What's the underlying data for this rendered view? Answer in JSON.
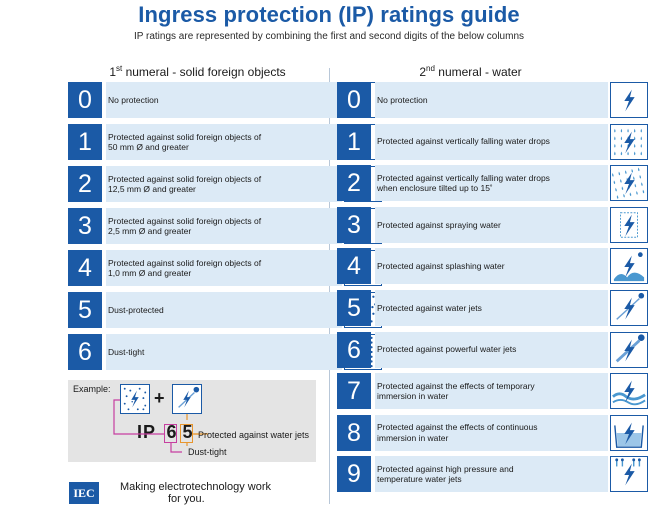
{
  "title": "Ingress protection (IP) ratings guide",
  "subtitle": "IP ratings are represented by combining the first and second digits of the below columns",
  "left_column": {
    "heading_prefix": "1",
    "heading_sup": "st",
    "heading_text": " numeral - solid foreign objects",
    "rows": [
      {
        "num": "0",
        "line1": "No protection",
        "line2": "",
        "icon": "lightning-icon"
      },
      {
        "num": "1",
        "line1": "Protected against solid foreign objects of",
        "line2": "50 mm Ø and greater",
        "icon": "hand-icon"
      },
      {
        "num": "2",
        "line1": "Protected against solid foreign objects of",
        "line2": "12,5 mm Ø and greater",
        "icon": "finger-icon"
      },
      {
        "num": "3",
        "line1": "Protected against solid foreign objects of",
        "line2": "2,5 mm Ø and greater",
        "icon": "tool-icon"
      },
      {
        "num": "4",
        "line1": "Protected against solid foreign objects of",
        "line2": "1,0 mm Ø and greater",
        "icon": "wire-icon"
      },
      {
        "num": "5",
        "line1": "Dust-protected",
        "line2": "",
        "icon": "dust-icon"
      },
      {
        "num": "6",
        "line1": "Dust-tight",
        "line2": "",
        "icon": "dust-tight-icon"
      }
    ]
  },
  "right_column": {
    "heading_prefix": "2",
    "heading_sup": "nd",
    "heading_text": " numeral - water",
    "rows": [
      {
        "num": "0",
        "line1": "No protection",
        "line2": "",
        "icon": "lightning-icon"
      },
      {
        "num": "1",
        "line1": "Protected against vertically falling water drops",
        "line2": "",
        "icon": "water-drops-icon"
      },
      {
        "num": "2",
        "line1": "Protected against vertically falling water drops",
        "line2": "when enclosure tilted up to 15˚",
        "icon": "tilted-drops-icon"
      },
      {
        "num": "3",
        "line1": "Protected against spraying water",
        "line2": "",
        "icon": "spray-icon"
      },
      {
        "num": "4",
        "line1": "Protected against splashing water",
        "line2": "",
        "icon": "splash-icon"
      },
      {
        "num": "5",
        "line1": "Protected against water jets",
        "line2": "",
        "icon": "water-jet-icon"
      },
      {
        "num": "6",
        "line1": "Protected against powerful water jets",
        "line2": "",
        "icon": "powerful-jet-icon"
      },
      {
        "num": "7",
        "line1": "Protected against the effects of temporary",
        "line2": "immersion in water",
        "icon": "temporary-immersion-icon"
      },
      {
        "num": "8",
        "line1": "Protected against the effects of continuous",
        "line2": "immersion in water",
        "icon": "continuous-immersion-icon"
      },
      {
        "num": "9",
        "line1": "Protected against high pressure and",
        "line2": "temperature water jets",
        "icon": "high-pressure-icon"
      }
    ]
  },
  "example": {
    "label": "Example:",
    "plus": "+",
    "ip": "IP",
    "digit1": "6",
    "digit2": "5",
    "text_water": "Protected against water jets",
    "text_dust": "Dust-tight",
    "digit1_color": "#c63fa0",
    "digit2_color": "#e8962e"
  },
  "footer": {
    "logo": "IEC",
    "tagline_line1": "Making  electrotechnology work",
    "tagline_line2": "for you."
  },
  "colors": {
    "brand_blue": "#1b5aa6",
    "row_bg": "#dceaf6",
    "example_bg": "#e4e4e4"
  }
}
